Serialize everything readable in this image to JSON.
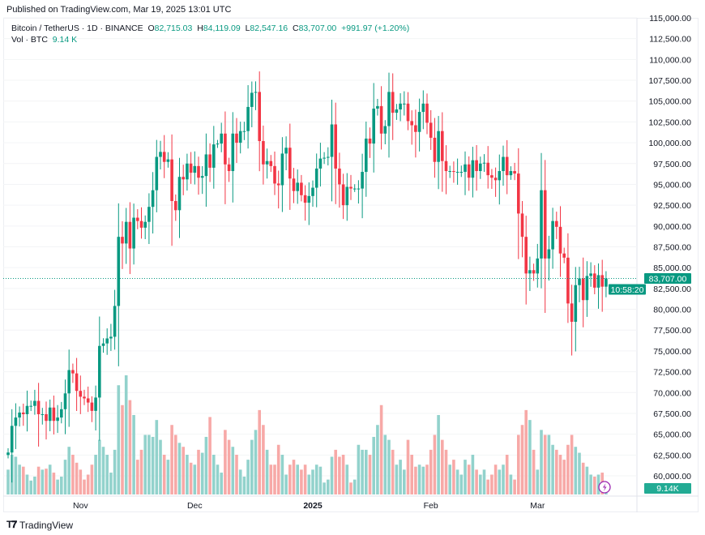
{
  "published": "Published on TradingView.com, Mar 19, 2025 13:01 UTC",
  "legend": {
    "symbol": "Bitcoin / TetherUS · 1D · BINANCE",
    "open_label": "O",
    "open": "82,715.03",
    "high_label": "H",
    "high": "84,119.09",
    "low_label": "L",
    "low": "82,547.16",
    "close_label": "C",
    "close": "83,707.00",
    "change": "+991.97 (+1.20%)",
    "vol_label": "Vol · BTC",
    "vol": "9.14 K"
  },
  "brand": "TradingView",
  "colors": {
    "up": "#089981",
    "down": "#f23645",
    "vol_up": "#92d2cc",
    "vol_down": "#f7a9a7",
    "price_tag": "#089981"
  },
  "chart_data": {
    "type": "candlestick",
    "x_ticks": [
      {
        "label": "Nov",
        "day": 19
      },
      {
        "label": "Dec",
        "day": 49
      },
      {
        "label": "2025",
        "day": 80,
        "bold": true
      },
      {
        "label": "Feb",
        "day": 111
      },
      {
        "label": "Mar",
        "day": 139
      }
    ],
    "first_date": "2024-10-13",
    "y_range": [
      57500,
      115000
    ],
    "y_ticks": [
      "115,000.00",
      "112,500.00",
      "110,000.00",
      "107,500.00",
      "105,000.00",
      "102,500.00",
      "100,000.00",
      "97,500.00",
      "95,000.00",
      "92,500.00",
      "90,000.00",
      "87,500.00",
      "85,000.00",
      "82,500.00",
      "80,000.00",
      "77,500.00",
      "75,000.00",
      "72,500.00",
      "70,000.00",
      "67,500.00",
      "65,000.00",
      "62,500.00",
      "60,000.00"
    ],
    "first_open": 62500,
    "closes": [
      62800,
      66000,
      67000,
      67600,
      67400,
      68400,
      68400,
      69000,
      67400,
      67400,
      66600,
      68200,
      66600,
      67000,
      68000,
      69900,
      72700,
      72300,
      70200,
      69500,
      69300,
      68800,
      67800,
      69400,
      75600,
      75900,
      76500,
      76700,
      80400,
      88700,
      87900,
      90500,
      87300,
      91000,
      90600,
      89800,
      90500,
      92300,
      94300,
      98300,
      98900,
      97700,
      98000,
      93000,
      91900,
      95900,
      95600,
      97500,
      96400,
      97200,
      95800,
      96000,
      98600,
      97000,
      99800,
      99900,
      101100,
      97400,
      96600,
      101100,
      100000,
      101400,
      101400,
      104300,
      106000,
      106100,
      100200,
      97400,
      97800,
      97200,
      95100,
      94900,
      98700,
      99400,
      95700,
      94200,
      95200,
      93700,
      92800,
      93600,
      94600,
      96900,
      98100,
      98200,
      98300,
      102200,
      96900,
      95000,
      92500,
      94700,
      94500,
      94500,
      94500,
      96500,
      100500,
      99900,
      104100,
      104400,
      101100,
      102000,
      106100,
      103600,
      104000,
      104700,
      104700,
      102600,
      102100,
      101300,
      103700,
      104700,
      102400,
      100600,
      97700,
      101400,
      97800,
      96600,
      96600,
      96500,
      96500,
      96500,
      97400,
      95800,
      97900,
      96600,
      97500,
      97600,
      96100,
      95800,
      95500,
      96600,
      98300,
      96100,
      96600,
      96300,
      91500,
      88700,
      84300,
      84700,
      84300,
      86100,
      94300,
      86100,
      87200,
      90600,
      89900,
      86700,
      86200,
      80700,
      78500,
      82900,
      83700,
      81100,
      84000,
      84300,
      82600,
      84100,
      82715,
      83707
    ],
    "volumes": [
      25,
      40,
      38,
      30,
      28,
      20,
      14,
      18,
      28,
      25,
      26,
      30,
      22,
      15,
      18,
      35,
      48,
      40,
      32,
      25,
      15,
      20,
      30,
      40,
      55,
      48,
      40,
      22,
      45,
      110,
      90,
      120,
      95,
      80,
      35,
      45,
      60,
      60,
      58,
      75,
      55,
      40,
      35,
      70,
      60,
      52,
      48,
      40,
      32,
      30,
      45,
      42,
      58,
      78,
      40,
      30,
      22,
      65,
      55,
      48,
      40,
      25,
      18,
      35,
      55,
      65,
      85,
      70,
      45,
      30,
      30,
      50,
      40,
      20,
      30,
      35,
      30,
      25,
      30,
      20,
      25,
      30,
      28,
      12,
      15,
      38,
      45,
      38,
      40,
      30,
      12,
      15,
      50,
      45,
      45,
      40,
      58,
      70,
      90,
      60,
      55,
      45,
      30,
      35,
      25,
      55,
      40,
      28,
      30,
      28,
      30,
      45,
      60,
      80,
      55,
      45,
      30,
      35,
      25,
      20,
      35,
      30,
      40,
      25,
      20,
      25,
      15,
      20,
      30,
      25,
      30,
      40,
      20,
      15,
      60,
      70,
      85,
      75,
      45,
      25,
      65,
      60,
      60,
      50,
      45,
      40,
      35,
      50,
      60,
      48,
      42,
      32,
      28,
      20,
      18,
      20,
      22,
      9.14
    ],
    "last_price": "83,707.00",
    "countdown": "10:58:20",
    "last_volume": "9.14 K"
  }
}
